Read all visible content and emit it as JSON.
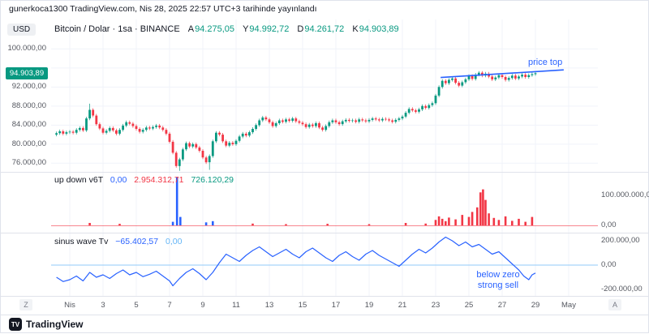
{
  "publish_bar": {
    "text": "gunerkoca1300 TradingView.com, Nis 28, 2025 22:57 UTC+3 tarihinde yayınlandı"
  },
  "toolbar": {
    "currency_label": "USD"
  },
  "legend": {
    "symbol": "Bitcoin / Dolar · 1sa · BINANCE",
    "ohlc": [
      {
        "key": "A",
        "value": "94.275,05",
        "color": "#089981"
      },
      {
        "key": "Y",
        "value": "94.992,72",
        "color": "#089981"
      },
      {
        "key": "D",
        "value": "94.261,72",
        "color": "#089981"
      },
      {
        "key": "K",
        "value": "94.903,89",
        "color": "#089981"
      }
    ]
  },
  "price_axis": {
    "ticks": [
      [
        "100.000,00",
        100000
      ],
      [
        "92.000,00",
        92000
      ],
      [
        "88.000,00",
        88000
      ],
      [
        "84.000,00",
        84000
      ],
      [
        "80.000,00",
        80000
      ],
      [
        "76.000,00",
        76000
      ]
    ],
    "gridlines": [
      76000,
      80000,
      84000,
      88000,
      92000,
      96000,
      100000
    ],
    "last_price_badge": {
      "label": "94.903,89",
      "value": 94903.89,
      "bg": "#089981",
      "text_color": "#ffffff"
    }
  },
  "indicator1": {
    "name": "up down v6T",
    "values": [
      {
        "text": "0,00",
        "color": "#2962ff"
      },
      {
        "text": "2.954.312,71",
        "color": "#f23645"
      },
      {
        "text": "726.120,29",
        "color": "#089981"
      }
    ],
    "axis_ticks": [
      [
        "100.000.000,00",
        100000000
      ],
      [
        "0,00",
        0
      ]
    ]
  },
  "indicator2": {
    "name": "sinus wave Tv",
    "values": [
      {
        "text": "−65.402,57",
        "color": "#2962ff"
      },
      {
        "text": "0,00",
        "color": "#64b5f6"
      }
    ],
    "axis_ticks": [
      [
        "200.000,00",
        200000
      ],
      [
        "0,00",
        0
      ],
      [
        "-200.000,00",
        -200000
      ]
    ]
  },
  "time_axis": {
    "labels": [
      [
        "Nis",
        1
      ],
      [
        "3",
        3
      ],
      [
        "5",
        5
      ],
      [
        "7",
        7
      ],
      [
        "9",
        9
      ],
      [
        "11",
        11
      ],
      [
        "13",
        13
      ],
      [
        "15",
        15
      ],
      [
        "17",
        17
      ],
      [
        "19",
        19
      ],
      [
        "21",
        21
      ],
      [
        "23",
        23
      ],
      [
        "25",
        25
      ],
      [
        "27",
        27
      ],
      [
        "29",
        29
      ],
      [
        "May",
        31
      ]
    ],
    "left_button": "Z",
    "right_button": "A"
  },
  "annotations": {
    "price_top": {
      "text": "price top",
      "color": "#2962ff",
      "line": {
        "x1_day": 23.3,
        "y1_value": 94000,
        "x2_day": 30.7,
        "y2_value": 95600
      }
    },
    "strong_sell": {
      "lines": [
        "below zero",
        "strong sell"
      ],
      "color": "#2962ff"
    }
  },
  "footer": {
    "brand": "TradingView",
    "logo_letters": "TV"
  },
  "chart_data": [
    {
      "type": "candlestick",
      "name": "Bitcoin / Dolar 1sa BINANCE",
      "x_start_day": 0.2,
      "x_step_day": 0.2,
      "ylim": [
        74350,
        105000
      ],
      "up_color": "#089981",
      "down_color": "#f23645",
      "default_wick": 350,
      "wick_overrides": [
        {
          "i": 10,
          "high": 88500
        },
        {
          "i": 37,
          "low": 74400
        },
        {
          "i": 46,
          "low": 74600
        }
      ],
      "closes": [
        82300,
        82700,
        82200,
        82500,
        82600,
        82400,
        83000,
        83400,
        82900,
        85400,
        87200,
        86000,
        84200,
        83300,
        82400,
        82800,
        83400,
        82900,
        82200,
        83000,
        83900,
        84600,
        84300,
        83800,
        83200,
        82600,
        83000,
        83500,
        83300,
        83600,
        83900,
        83500,
        83000,
        82200,
        80500,
        78200,
        75400,
        76800,
        78900,
        80200,
        79500,
        80000,
        79300,
        78600,
        77200,
        76200,
        77500,
        80600,
        82400,
        82000,
        80600,
        79700,
        80300,
        80000,
        80700,
        81600,
        82200,
        81800,
        82500,
        83200,
        84000,
        85000,
        85600,
        85200,
        84600,
        83800,
        84400,
        85000,
        84700,
        85200,
        84900,
        85400,
        84800,
        84500,
        84200,
        83600,
        84100,
        83800,
        84400,
        83500,
        83000,
        83800,
        84600,
        85000,
        84600,
        84200,
        84800,
        85100,
        84900,
        85000,
        84700,
        85200,
        85000,
        84800,
        85100,
        85400,
        85200,
        85000,
        85300,
        85200,
        85000,
        84700,
        85100,
        85400,
        85800,
        86600,
        87400,
        87100,
        86800,
        87300,
        88000,
        87600,
        88200,
        88600,
        90200,
        92000,
        93300,
        92800,
        93500,
        93800,
        92900,
        92300,
        93000,
        93600,
        94300,
        93700,
        94600,
        95000,
        94400,
        94800,
        94200,
        93600,
        94000,
        94500,
        94100,
        93500,
        93900,
        94400,
        93800,
        94200,
        94600,
        94100,
        94500,
        94700,
        94903.89
      ]
    },
    {
      "type": "bar",
      "name": "up down v6T",
      "ylim": [
        0,
        180000000
      ],
      "baseline_color": "#f23645",
      "bars": [
        [
          2.2,
          8000000,
          "#f23645"
        ],
        [
          4.0,
          5000000,
          "#f23645"
        ],
        [
          7.2,
          12000000,
          "#2962ff"
        ],
        [
          7.45,
          160000000,
          "#2962ff"
        ],
        [
          7.65,
          28000000,
          "#2962ff"
        ],
        [
          9.2,
          10000000,
          "#2962ff"
        ],
        [
          9.6,
          14000000,
          "#2962ff"
        ],
        [
          12.0,
          6000000,
          "#f23645"
        ],
        [
          14.0,
          4000000,
          "#f23645"
        ],
        [
          16.5,
          5000000,
          "#f23645"
        ],
        [
          19.0,
          4000000,
          "#f23645"
        ],
        [
          21.2,
          8000000,
          "#f23645"
        ],
        [
          22.4,
          6000000,
          "#f23645"
        ],
        [
          23.0,
          18000000,
          "#f23645"
        ],
        [
          23.2,
          30000000,
          "#f23645"
        ],
        [
          23.4,
          22000000,
          "#f23645"
        ],
        [
          23.6,
          14000000,
          "#f23645"
        ],
        [
          23.8,
          26000000,
          "#f23645"
        ],
        [
          24.2,
          20000000,
          "#f23645"
        ],
        [
          24.6,
          35000000,
          "#f23645"
        ],
        [
          25.0,
          28000000,
          "#f23645"
        ],
        [
          25.2,
          45000000,
          "#f23645"
        ],
        [
          25.5,
          60000000,
          "#f23645"
        ],
        [
          25.7,
          110000000,
          "#f23645"
        ],
        [
          25.85,
          120000000,
          "#f23645"
        ],
        [
          26.0,
          85000000,
          "#f23645"
        ],
        [
          26.2,
          40000000,
          "#f23645"
        ],
        [
          26.5,
          25000000,
          "#f23645"
        ],
        [
          26.8,
          18000000,
          "#f23645"
        ],
        [
          27.2,
          30000000,
          "#f23645"
        ],
        [
          27.6,
          15000000,
          "#f23645"
        ],
        [
          28.0,
          22000000,
          "#f23645"
        ],
        [
          28.4,
          12000000,
          "#f23645"
        ],
        [
          28.8,
          28000000,
          "#f23645"
        ]
      ]
    },
    {
      "type": "line",
      "name": "sinus wave Tv",
      "ylim": [
        -230000,
        245000
      ],
      "color": "#2962ff",
      "zero_line_color": "#90caf9",
      "points": [
        [
          0.2,
          -100000
        ],
        [
          0.6,
          -135000
        ],
        [
          1.0,
          -120000
        ],
        [
          1.4,
          -90000
        ],
        [
          1.8,
          -130000
        ],
        [
          2.2,
          -60000
        ],
        [
          2.6,
          -100000
        ],
        [
          3.0,
          -80000
        ],
        [
          3.4,
          -110000
        ],
        [
          3.8,
          -70000
        ],
        [
          4.2,
          -40000
        ],
        [
          4.6,
          -80000
        ],
        [
          5.0,
          -60000
        ],
        [
          5.4,
          -95000
        ],
        [
          5.8,
          -75000
        ],
        [
          6.2,
          -50000
        ],
        [
          6.6,
          -90000
        ],
        [
          7.0,
          -130000
        ],
        [
          7.2,
          -170000
        ],
        [
          7.6,
          -110000
        ],
        [
          8.0,
          -60000
        ],
        [
          8.4,
          -30000
        ],
        [
          8.8,
          -70000
        ],
        [
          9.2,
          -120000
        ],
        [
          9.6,
          -60000
        ],
        [
          10.0,
          20000
        ],
        [
          10.4,
          90000
        ],
        [
          10.8,
          60000
        ],
        [
          11.2,
          30000
        ],
        [
          11.6,
          80000
        ],
        [
          12.0,
          120000
        ],
        [
          12.4,
          150000
        ],
        [
          12.8,
          110000
        ],
        [
          13.2,
          70000
        ],
        [
          13.6,
          100000
        ],
        [
          14.0,
          130000
        ],
        [
          14.4,
          90000
        ],
        [
          14.8,
          60000
        ],
        [
          15.2,
          110000
        ],
        [
          15.6,
          140000
        ],
        [
          16.0,
          100000
        ],
        [
          16.4,
          60000
        ],
        [
          16.8,
          30000
        ],
        [
          17.2,
          80000
        ],
        [
          17.6,
          110000
        ],
        [
          18.0,
          70000
        ],
        [
          18.4,
          40000
        ],
        [
          18.8,
          90000
        ],
        [
          19.2,
          120000
        ],
        [
          19.6,
          80000
        ],
        [
          20.0,
          50000
        ],
        [
          20.4,
          20000
        ],
        [
          20.8,
          -10000
        ],
        [
          21.2,
          40000
        ],
        [
          21.6,
          90000
        ],
        [
          22.0,
          130000
        ],
        [
          22.4,
          100000
        ],
        [
          22.8,
          140000
        ],
        [
          23.2,
          190000
        ],
        [
          23.6,
          230000
        ],
        [
          24.0,
          200000
        ],
        [
          24.4,
          160000
        ],
        [
          24.8,
          190000
        ],
        [
          25.2,
          150000
        ],
        [
          25.6,
          170000
        ],
        [
          26.0,
          130000
        ],
        [
          26.4,
          90000
        ],
        [
          26.8,
          110000
        ],
        [
          27.2,
          60000
        ],
        [
          27.6,
          10000
        ],
        [
          28.0,
          -40000
        ],
        [
          28.3,
          -90000
        ],
        [
          28.6,
          -120000
        ],
        [
          28.8,
          -80000
        ],
        [
          29.0,
          -65402.57
        ]
      ]
    }
  ]
}
